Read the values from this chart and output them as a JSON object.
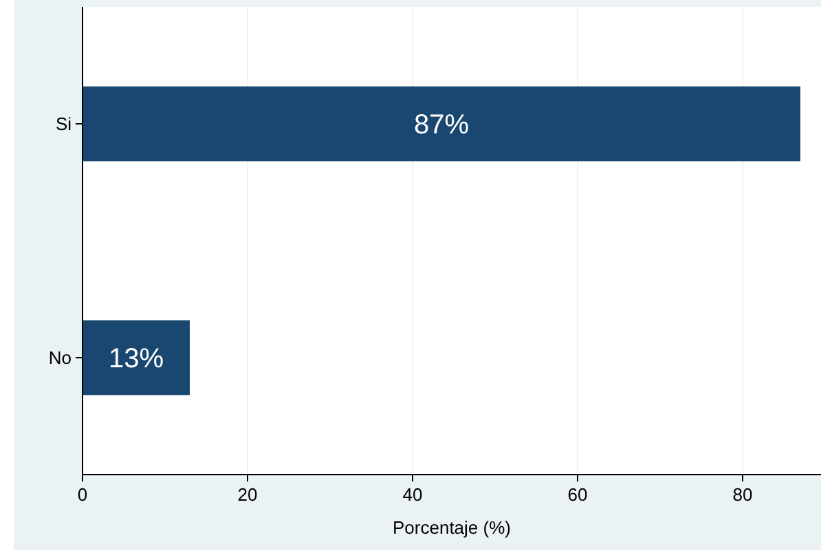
{
  "chart_data": {
    "type": "bar",
    "orientation": "horizontal",
    "categories": [
      "Si",
      "No"
    ],
    "values": [
      87,
      13
    ],
    "color": "#1a476f",
    "value_labels": [
      "87%",
      "13%"
    ],
    "xlabel": "Porcentaje (%)",
    "xlim": [
      0,
      89.5
    ],
    "xticks": [
      0,
      20,
      40,
      60,
      80
    ],
    "grid": "x"
  }
}
